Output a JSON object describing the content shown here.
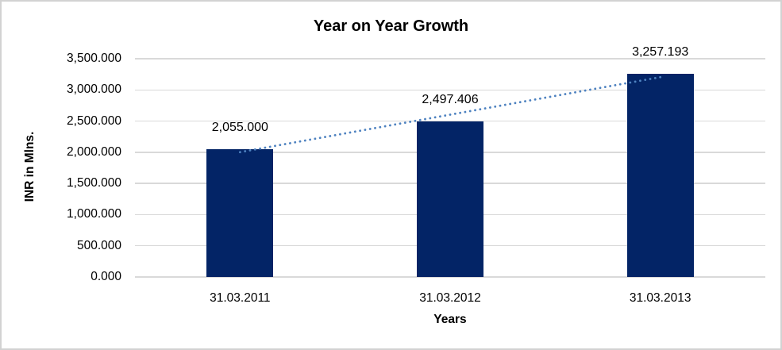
{
  "chart_data": {
    "type": "bar",
    "title": "Year on Year Growth",
    "xlabel": "Years",
    "ylabel": "INR in Mlns.",
    "categories": [
      "31.03.2011",
      "31.03.2012",
      "31.03.2013"
    ],
    "series": [
      {
        "name": "INR in Mlns.",
        "values": [
          2055.0,
          2497.406,
          3257.193
        ],
        "data_labels": [
          "2,055.000",
          "2,497.406",
          "3,257.193"
        ]
      }
    ],
    "ylim": [
      0,
      3500
    ],
    "y_ticks": [
      0,
      500,
      1000,
      1500,
      2000,
      2500,
      3000,
      3500
    ],
    "y_tick_labels": [
      "0.000",
      "500.000",
      "1,000.000",
      "1,500.000",
      "2,000.000",
      "2,500.000",
      "3,000.000",
      "3,500.000"
    ],
    "grid": true,
    "legend": false,
    "trendline": {
      "type": "linear",
      "style": "dotted"
    },
    "colors": {
      "bar": "#032466",
      "trendline": "#4E82C0",
      "gridline": "#D9D9D9",
      "text": "#000000",
      "frame": "#D2D2D2"
    }
  }
}
